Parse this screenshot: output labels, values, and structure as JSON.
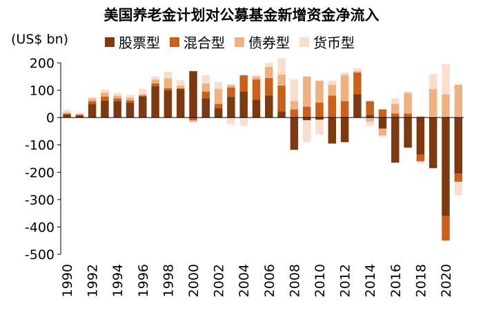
{
  "chart_data": {
    "type": "bar",
    "stacked": true,
    "title": "美国养老金计划对公募基金新增资金净流入",
    "unit_label": "(US$ bn)",
    "ylim": [
      -500,
      200
    ],
    "yticks": [
      200,
      100,
      0,
      -100,
      -200,
      -300,
      -400,
      -500
    ],
    "xtick_labels": [
      "1990",
      "1992",
      "1994",
      "1996",
      "1998",
      "2000",
      "2002",
      "2004",
      "2006",
      "2008",
      "2010",
      "2012",
      "2014",
      "2016",
      "2018",
      "2020"
    ],
    "categories": [
      "1990",
      "1991",
      "1992",
      "1993",
      "1994",
      "1995",
      "1996",
      "1997",
      "1998",
      "1999",
      "2000",
      "2001",
      "2002",
      "2003",
      "2004",
      "2005",
      "2006",
      "2007",
      "2008",
      "2009",
      "2010",
      "2011",
      "2012",
      "2013",
      "2014",
      "2015",
      "2016",
      "2017",
      "2018",
      "2019",
      "2020",
      "2021"
    ],
    "legend_position": "top",
    "grid": false,
    "series": [
      {
        "name": "股票型",
        "color": "#7b3a12",
        "values": [
          12,
          8,
          50,
          62,
          60,
          55,
          78,
          115,
          100,
          105,
          170,
          70,
          35,
          75,
          95,
          65,
          80,
          22,
          -118,
          -10,
          -8,
          -95,
          -90,
          85,
          10,
          -40,
          -165,
          -110,
          -135,
          -185,
          -360,
          -205
        ]
      },
      {
        "name": "混合型",
        "color": "#c9601b",
        "values": [
          2,
          2,
          10,
          15,
          10,
          8,
          2,
          10,
          8,
          2,
          -10,
          25,
          15,
          35,
          60,
          75,
          65,
          95,
          30,
          40,
          55,
          80,
          60,
          80,
          50,
          30,
          15,
          15,
          -25,
          0,
          -90,
          -30
        ]
      },
      {
        "name": "债券型",
        "color": "#eeb182",
        "values": [
          5,
          3,
          10,
          15,
          10,
          10,
          5,
          15,
          35,
          10,
          -5,
          30,
          55,
          10,
          0,
          10,
          40,
          40,
          30,
          110,
          80,
          40,
          95,
          5,
          -15,
          -25,
          35,
          75,
          5,
          105,
          85,
          120
        ]
      },
      {
        "name": "货币型",
        "color": "#f9ded0",
        "values": [
          10,
          5,
          5,
          10,
          10,
          10,
          20,
          10,
          25,
          20,
          -5,
          30,
          25,
          -25,
          -30,
          5,
          15,
          60,
          80,
          -80,
          -55,
          15,
          10,
          10,
          -15,
          -5,
          20,
          5,
          -5,
          55,
          110,
          -50
        ]
      }
    ]
  }
}
